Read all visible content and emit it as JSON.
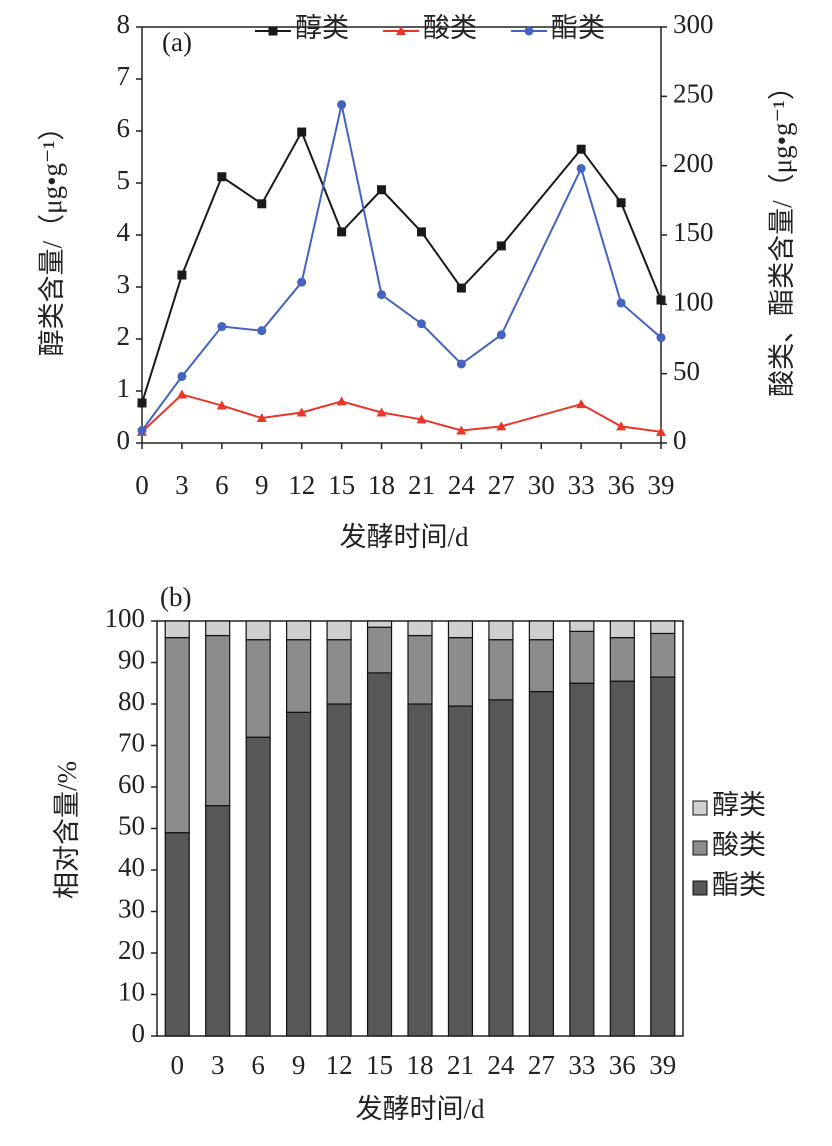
{
  "chart_data": [
    {
      "type": "line",
      "annotation": "(a)",
      "x_label": "发酵时间/d",
      "y_label": "醇类含量/（μg•g⁻¹）",
      "y2_label": "酸类、酯类含量/（μg•g⁻¹）",
      "x": [
        0,
        3,
        6,
        9,
        12,
        15,
        18,
        21,
        24,
        27,
        33,
        36,
        39
      ],
      "xlim": [
        0,
        39
      ],
      "xticks": [
        0,
        3,
        6,
        9,
        12,
        15,
        18,
        21,
        24,
        27,
        30,
        33,
        36,
        39
      ],
      "ylim": [
        0,
        8
      ],
      "yticks": [
        0,
        1,
        2,
        3,
        4,
        5,
        6,
        7,
        8
      ],
      "y2lim": [
        0,
        300
      ],
      "y2ticks": [
        0,
        50,
        100,
        150,
        200,
        250,
        300
      ],
      "legend": "top",
      "series": [
        {
          "name": "醇类",
          "color": "#1a1a1a",
          "marker": "square",
          "values": [
            0.77,
            3.23,
            5.12,
            4.6,
            5.98,
            4.06,
            4.87,
            4.06,
            2.98,
            3.79,
            5.65,
            4.62,
            2.75
          ]
        },
        {
          "name": "酸类",
          "color": "#e8372a",
          "marker": "triangle",
          "axis": "y2",
          "values": [
            8,
            35,
            27,
            18,
            22,
            30,
            22,
            17,
            9,
            12,
            28,
            12,
            8
          ]
        },
        {
          "name": "酯类",
          "color": "#4563c0",
          "marker": "circle",
          "axis": "y2",
          "values": [
            9,
            48,
            84,
            81,
            116,
            244,
            107,
            86,
            57,
            78,
            198,
            101,
            76
          ]
        }
      ]
    },
    {
      "type": "bar",
      "stacked": true,
      "annotation": "(b)",
      "x_label": "发酵时间/d",
      "y_label": "相对含量/%",
      "categories": [
        "0",
        "3",
        "6",
        "9",
        "12",
        "15",
        "18",
        "21",
        "24",
        "27",
        "33",
        "36",
        "39"
      ],
      "ylim": [
        0,
        100
      ],
      "yticks": [
        0,
        10,
        20,
        30,
        40,
        50,
        60,
        70,
        80,
        90,
        100
      ],
      "legend": "right",
      "series": [
        {
          "name": "酯类",
          "color": "#575757",
          "values": [
            49,
            55.5,
            72,
            78,
            80,
            87.5,
            80,
            79.5,
            81,
            83,
            85,
            85.5,
            86.5
          ]
        },
        {
          "name": "酸类",
          "color": "#8c8c8c",
          "values": [
            47,
            41,
            23.5,
            17.5,
            15.5,
            11,
            16.5,
            16.5,
            14.5,
            12.5,
            12.5,
            10.5,
            10.5
          ]
        },
        {
          "name": "醇类",
          "color": "#cfcfcf",
          "values": [
            4,
            3.5,
            4.5,
            4.5,
            4.5,
            1.5,
            3.5,
            4,
            4.5,
            4.5,
            2.5,
            4,
            3
          ]
        }
      ]
    }
  ]
}
